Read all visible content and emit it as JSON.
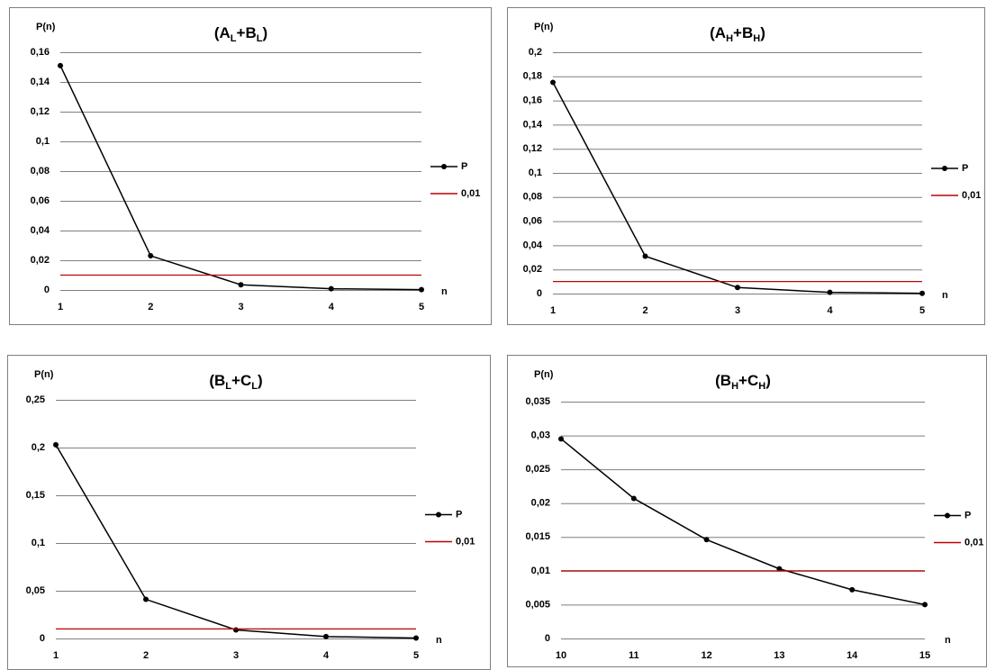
{
  "chart_data": [
    {
      "type": "line",
      "title": "(AL+BL)",
      "ylabel": "P(n)",
      "xlabel": "n",
      "x": [
        1,
        2,
        3,
        4,
        5
      ],
      "xlim": [
        1,
        5
      ],
      "xticks": [
        1,
        2,
        3,
        4,
        5
      ],
      "ylim": [
        0,
        0.16
      ],
      "yticks": [
        0,
        {
          "value": 0.02,
          "label": "0,02"
        },
        {
          "value": 0.04,
          "label": "0,04"
        },
        {
          "value": 0.06,
          "label": "0,06"
        },
        {
          "value": 0.08,
          "label": "0,08"
        },
        {
          "value": 0.1,
          "label": "0,1"
        },
        {
          "value": 0.12,
          "label": "0,12"
        },
        {
          "value": 0.14,
          "label": "0,14"
        },
        {
          "value": 0.16,
          "label": "0,16"
        }
      ],
      "grid": true,
      "series": [
        {
          "name": "P",
          "color": "#000000",
          "marker": true,
          "values": [
            0.151,
            0.023,
            0.0035,
            0.0008,
            0.0002
          ]
        },
        {
          "name": "0,01",
          "color": "#c00000",
          "marker": false,
          "values": [
            0.01,
            0.01,
            0.01,
            0.01,
            0.01
          ]
        }
      ]
    },
    {
      "type": "line",
      "title": "(AH+BH)",
      "ylabel": "P(n)",
      "xlabel": "n",
      "x": [
        1,
        2,
        3,
        4,
        5
      ],
      "xlim": [
        1,
        5
      ],
      "xticks": [
        1,
        2,
        3,
        4,
        5
      ],
      "ylim": [
        0,
        0.2
      ],
      "yticks": [
        0,
        {
          "value": 0.02,
          "label": "0,02"
        },
        {
          "value": 0.04,
          "label": "0,04"
        },
        {
          "value": 0.06,
          "label": "0,06"
        },
        {
          "value": 0.08,
          "label": "0,08"
        },
        {
          "value": 0.1,
          "label": "0,1"
        },
        {
          "value": 0.12,
          "label": "0,12"
        },
        {
          "value": 0.14,
          "label": "0,14"
        },
        {
          "value": 0.16,
          "label": "0,16"
        },
        {
          "value": 0.18,
          "label": "0,18"
        },
        {
          "value": 0.2,
          "label": "0,2"
        }
      ],
      "grid": true,
      "series": [
        {
          "name": "P",
          "color": "#000000",
          "marker": true,
          "values": [
            0.175,
            0.031,
            0.005,
            0.001,
            0.0002
          ]
        },
        {
          "name": "0,01",
          "color": "#c00000",
          "marker": false,
          "values": [
            0.01,
            0.01,
            0.01,
            0.01,
            0.01
          ]
        }
      ]
    },
    {
      "type": "line",
      "title": "(BL+CL)",
      "ylabel": "P(n)",
      "xlabel": "n",
      "x": [
        1,
        2,
        3,
        4,
        5
      ],
      "xlim": [
        1,
        5
      ],
      "xticks": [
        1,
        2,
        3,
        4,
        5
      ],
      "ylim": [
        0,
        0.25
      ],
      "yticks": [
        0,
        {
          "value": 0.05,
          "label": "0,05"
        },
        {
          "value": 0.1,
          "label": "0,1"
        },
        {
          "value": 0.15,
          "label": "0,15"
        },
        {
          "value": 0.2,
          "label": "0,2"
        },
        {
          "value": 0.25,
          "label": "0,25"
        }
      ],
      "grid": true,
      "series": [
        {
          "name": "P",
          "color": "#000000",
          "marker": true,
          "values": [
            0.203,
            0.041,
            0.009,
            0.002,
            0.0005
          ]
        },
        {
          "name": "0,01",
          "color": "#c00000",
          "marker": false,
          "values": [
            0.01,
            0.01,
            0.01,
            0.01,
            0.01
          ]
        }
      ]
    },
    {
      "type": "line",
      "title": "(BH+CH)",
      "ylabel": "P(n)",
      "xlabel": "n",
      "x": [
        10,
        11,
        12,
        13,
        14,
        15
      ],
      "xlim": [
        10,
        15
      ],
      "xticks": [
        10,
        11,
        12,
        13,
        14,
        15
      ],
      "ylim": [
        0,
        0.035
      ],
      "yticks": [
        0,
        {
          "value": 0.005,
          "label": "0,005"
        },
        {
          "value": 0.01,
          "label": "0,01"
        },
        {
          "value": 0.015,
          "label": "0,015"
        },
        {
          "value": 0.02,
          "label": "0,02"
        },
        {
          "value": 0.025,
          "label": "0,025"
        },
        {
          "value": 0.03,
          "label": "0,03"
        },
        {
          "value": 0.035,
          "label": "0,035"
        }
      ],
      "grid": true,
      "series": [
        {
          "name": "P",
          "color": "#000000",
          "marker": true,
          "values": [
            0.0295,
            0.0207,
            0.0146,
            0.0103,
            0.0072,
            0.005
          ]
        },
        {
          "name": "0,01",
          "color": "#c00000",
          "marker": false,
          "values": [
            0.01,
            0.01,
            0.01,
            0.01,
            0.01,
            0.01
          ]
        }
      ]
    }
  ]
}
